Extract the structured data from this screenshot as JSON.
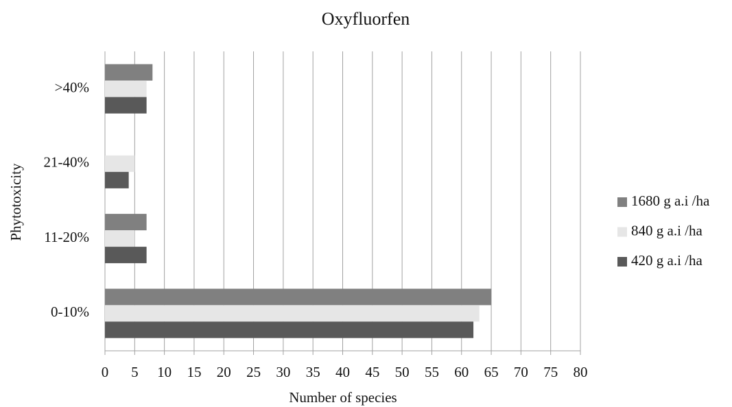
{
  "chart_data": {
    "type": "hbar",
    "title": "Oxyfluorfen",
    "xlabel": "Number of species",
    "ylabel": "Phytotoxicity",
    "categories": [
      "0-10%",
      "11-20%",
      "21-40%",
      ">40%"
    ],
    "series": [
      {
        "name": "1680 g a.i /ha",
        "color": "#808080",
        "values": [
          65,
          7,
          0,
          8
        ]
      },
      {
        "name": "840 g a.i /ha",
        "color": "#e6e6e6",
        "values": [
          63,
          5,
          5,
          7
        ]
      },
      {
        "name": "420 g a.i /ha",
        "color": "#595959",
        "values": [
          62,
          7,
          4,
          7
        ]
      }
    ],
    "xlim": [
      0,
      80
    ],
    "xticks": [
      0,
      5,
      10,
      15,
      20,
      25,
      30,
      35,
      40,
      45,
      50,
      55,
      60,
      65,
      70,
      75,
      80
    ],
    "grid": true,
    "legend": "right"
  }
}
